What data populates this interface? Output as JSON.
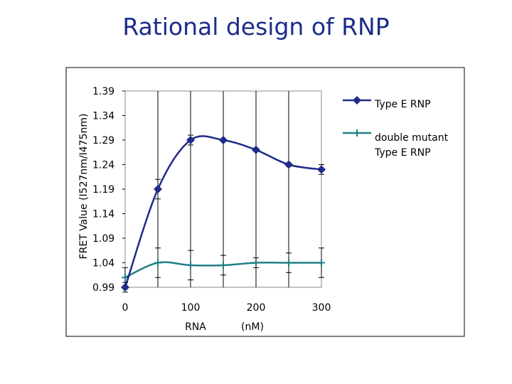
{
  "slide": {
    "title": "Rational design of RNP"
  },
  "chart_data": {
    "type": "line",
    "ylabel": "FRET Value (I527nm/I475nm)",
    "xlabel_parts": [
      "RNA",
      "(nM)"
    ],
    "xlim": [
      0,
      300
    ],
    "ylim": [
      0.99,
      1.39
    ],
    "x_ticks": [
      "0",
      "100",
      "200",
      "300"
    ],
    "y_ticks": [
      "1.39",
      "1.34",
      "1.29",
      "1.24",
      "1.19",
      "1.14",
      "1.09",
      "1.04",
      "0.99"
    ],
    "grid": "vertical-lines-every-50",
    "legend_position": "right",
    "series": [
      {
        "name": "Type E RNP",
        "color": "#1f2a8a",
        "marker": "diamond",
        "x": [
          0,
          50,
          100,
          150,
          200,
          250,
          300
        ],
        "y": [
          0.99,
          1.19,
          1.29,
          1.29,
          1.27,
          1.24,
          1.23
        ],
        "err": [
          0.01,
          0.02,
          0.01,
          0.0,
          0.0,
          0.0,
          0.01
        ]
      },
      {
        "name": "double mutant Type E RNP",
        "legend_lines": [
          "double mutant",
          "Type E RNP"
        ],
        "color": "#1f7f86",
        "marker": "plus",
        "x": [
          0,
          50,
          100,
          150,
          200,
          250,
          300
        ],
        "y": [
          1.01,
          1.04,
          1.035,
          1.035,
          1.04,
          1.04,
          1.04
        ],
        "err": [
          0.02,
          0.03,
          0.03,
          0.02,
          0.01,
          0.02,
          0.03
        ]
      }
    ]
  }
}
